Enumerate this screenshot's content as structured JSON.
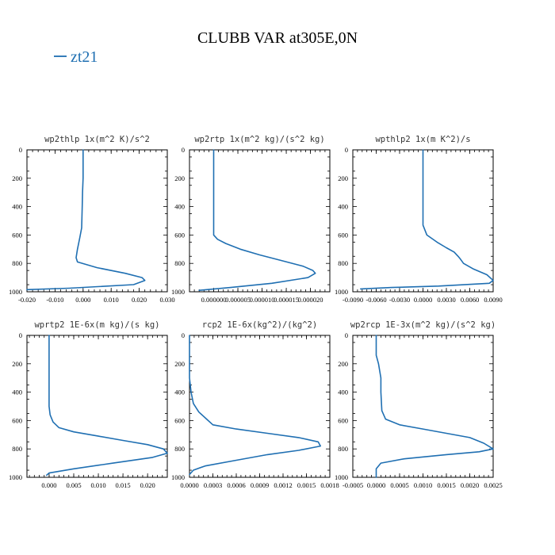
{
  "title": "CLUBB VAR at305E,0N",
  "legend": {
    "label": "zt21",
    "color": "#1f6fb2"
  },
  "chart_data": [
    {
      "type": "line",
      "title": "wp2thlp  1x(m^2 K)/s^2",
      "xlim": [
        -0.02,
        0.03
      ],
      "ylim": [
        1000,
        0
      ],
      "xticks": [
        -0.02,
        -0.01,
        0.0,
        0.01,
        0.02,
        0.03
      ],
      "xtick_labels": [
        "-0.020",
        "-0.010",
        "0.000",
        "0.010",
        "0.020",
        "0.030"
      ],
      "yticks": [
        0,
        200,
        400,
        600,
        800,
        1000
      ],
      "ytick_labels": [
        "0",
        "200",
        "400",
        "600",
        "800",
        "1000"
      ],
      "series": [
        {
          "x": [
            0.0,
            0.0,
            -0.0002,
            -0.0003,
            -0.0005,
            -0.0012,
            -0.002,
            -0.0025,
            -0.002,
            0.005,
            0.015,
            0.021,
            0.022,
            0.018,
            -0.005,
            -0.02
          ],
          "y": [
            0,
            200,
            300,
            400,
            550,
            620,
            700,
            760,
            790,
            830,
            870,
            900,
            920,
            950,
            975,
            985
          ]
        }
      ]
    },
    {
      "type": "line",
      "title": "wp2rtp  1x(m^2 kg)/(s^2 kg)",
      "xlim": [
        -5e-06,
        2.4e-05
      ],
      "ylim": [
        1000,
        0
      ],
      "xticks": [
        0.0,
        5e-06,
        1e-05,
        1.5e-05,
        2e-05
      ],
      "xtick_labels": [
        "0.000000",
        "0.000005",
        "0.000010",
        "0.000015",
        "0.000020"
      ],
      "yticks": [
        0,
        200,
        400,
        600,
        800,
        1000
      ],
      "ytick_labels": [
        "0",
        "200",
        "400",
        "600",
        "800",
        "1000"
      ],
      "series": [
        {
          "x": [
            0.0,
            0.0,
            0.0,
            0.0,
            3e-09,
            8e-07,
            2.5e-06,
            5.5e-06,
            9.5e-06,
            1.4e-05,
            1.85e-05,
            2.05e-05,
            2.1e-05,
            1.95e-05,
            1.2e-05,
            3.5e-06,
            -3e-06
          ],
          "y": [
            0,
            200,
            400,
            550,
            600,
            630,
            660,
            700,
            740,
            780,
            820,
            850,
            870,
            900,
            940,
            970,
            990
          ]
        }
      ]
    },
    {
      "type": "line",
      "title": "wpthlp2  1x(m K^2)/s",
      "xlim": [
        -0.009,
        0.009
      ],
      "ylim": [
        1000,
        0
      ],
      "xticks": [
        -0.009,
        -0.006,
        -0.003,
        0.0,
        0.003,
        0.006,
        0.009
      ],
      "xtick_labels": [
        "-0.0090",
        "-0.0060",
        "-0.0030",
        "0.0000",
        "0.0030",
        "0.0060",
        "0.0090"
      ],
      "yticks": [
        0,
        200,
        400,
        600,
        800,
        1000
      ],
      "ytick_labels": [
        "0",
        "200",
        "400",
        "600",
        "800",
        "1000"
      ],
      "series": [
        {
          "x": [
            0.0,
            0.0,
            0.0,
            0.0,
            0.0005,
            0.0018,
            0.003,
            0.004,
            0.0045,
            0.0048,
            0.0052,
            0.0065,
            0.0082,
            0.009,
            0.0085,
            0.002,
            -0.004,
            -0.008
          ],
          "y": [
            0,
            200,
            400,
            530,
            600,
            650,
            690,
            720,
            750,
            770,
            800,
            840,
            880,
            920,
            940,
            960,
            970,
            980
          ]
        }
      ]
    },
    {
      "type": "line",
      "title": "wprtp2  1E-6x(m kg)/(s kg)",
      "xlim": [
        -0.0045,
        0.024
      ],
      "ylim": [
        1000,
        0
      ],
      "xticks": [
        0.0,
        0.005,
        0.01,
        0.015,
        0.02
      ],
      "xtick_labels": [
        "0.000",
        "0.005",
        "0.010",
        "0.015",
        "0.020"
      ],
      "yticks": [
        0,
        200,
        400,
        600,
        800,
        1000
      ],
      "ytick_labels": [
        "0",
        "200",
        "400",
        "600",
        "800",
        "1000"
      ],
      "series": [
        {
          "x": [
            0.0,
            0.0,
            0.0,
            0.0,
            0.0002,
            0.0008,
            0.002,
            0.005,
            0.01,
            0.015,
            0.02,
            0.0232,
            0.024,
            0.021,
            0.013,
            0.005,
            0.0,
            -0.0005
          ],
          "y": [
            0,
            200,
            400,
            500,
            560,
            610,
            650,
            680,
            710,
            740,
            770,
            800,
            830,
            860,
            900,
            940,
            970,
            985
          ]
        }
      ]
    },
    {
      "type": "line",
      "title": "rcp2   1E-6x(kg^2)/(kg^2)",
      "xlim": [
        0.0,
        0.0018
      ],
      "ylim": [
        1000,
        0
      ],
      "xticks": [
        0.0,
        0.0003,
        0.0006,
        0.0009,
        0.0012,
        0.0015,
        0.0018
      ],
      "xtick_labels": [
        "0.0000",
        "0.0003",
        "0.0006",
        "0.0009",
        "0.0012",
        "0.0015",
        "0.0018"
      ],
      "yticks": [
        0,
        200,
        400,
        600,
        800,
        1000
      ],
      "ytick_labels": [
        "0",
        "200",
        "400",
        "600",
        "800",
        "1000"
      ],
      "series": [
        {
          "x": [
            0.0,
            0.0,
            2e-05,
            5e-05,
            0.00012,
            0.00022,
            0.0003,
            0.0006,
            0.001,
            0.0014,
            0.00165,
            0.00168,
            0.0014,
            0.001,
            0.0006,
            0.0002,
            5e-05,
            0.0
          ],
          "y": [
            0,
            300,
            400,
            480,
            540,
            590,
            630,
            660,
            690,
            720,
            750,
            780,
            810,
            840,
            880,
            920,
            950,
            980
          ]
        }
      ]
    },
    {
      "type": "line",
      "title": "wp2rcp  1E-3x(m^2 kg)/(s^2 kg)",
      "xlim": [
        -0.0005,
        0.0025
      ],
      "ylim": [
        1000,
        0
      ],
      "xticks": [
        -0.0005,
        0.0,
        0.0005,
        0.001,
        0.0015,
        0.002,
        0.0025
      ],
      "xtick_labels": [
        "-0.0005",
        "0.0000",
        "0.0005",
        "0.0010",
        "0.0015",
        "0.0020",
        "0.0025"
      ],
      "yticks": [
        0,
        200,
        400,
        600,
        800,
        1000
      ],
      "ytick_labels": [
        "0",
        "200",
        "400",
        "600",
        "800",
        "1000"
      ],
      "series": [
        {
          "x": [
            0.0,
            0.0,
            5e-05,
            0.0001,
            0.0001,
            0.00012,
            0.0002,
            0.0005,
            0.001,
            0.0015,
            0.002,
            0.0023,
            0.0025,
            0.0022,
            0.0015,
            0.0006,
            0.0001,
            0.0,
            0.0
          ],
          "y": [
            0,
            140,
            200,
            300,
            400,
            530,
            590,
            630,
            660,
            690,
            720,
            760,
            800,
            820,
            840,
            870,
            900,
            940,
            1000
          ]
        }
      ]
    }
  ]
}
